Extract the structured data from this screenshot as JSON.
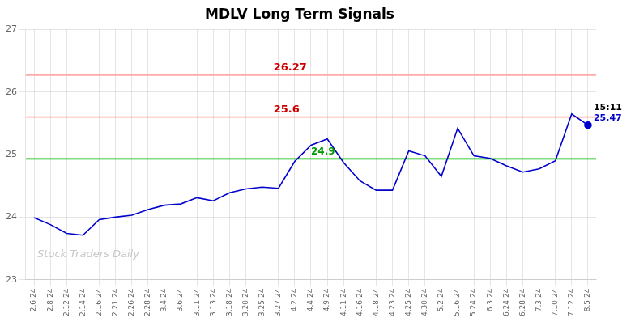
{
  "chart_data": {
    "type": "line",
    "title": "MDLV Long Term Signals",
    "watermark": "Stock Traders Daily",
    "categories": [
      "2.6.24",
      "2.8.24",
      "2.12.24",
      "2.14.24",
      "2.16.24",
      "2.21.24",
      "2.26.24",
      "2.28.24",
      "3.4.24",
      "3.6.24",
      "3.11.24",
      "3.13.24",
      "3.18.24",
      "3.20.24",
      "3.25.24",
      "3.27.24",
      "4.2.24",
      "4.4.24",
      "4.9.24",
      "4.11.24",
      "4.16.24",
      "4.18.24",
      "4.23.24",
      "4.25.24",
      "4.30.24",
      "5.2.24",
      "5.16.24",
      "5.24.24",
      "6.3.24",
      "6.24.24",
      "6.28.24",
      "7.3.24",
      "7.10.24",
      "7.12.24",
      "8.5.24"
    ],
    "values": [
      23.99,
      23.88,
      23.74,
      23.71,
      23.96,
      24.0,
      24.03,
      24.12,
      24.19,
      24.21,
      24.31,
      24.26,
      24.39,
      24.45,
      24.48,
      24.46,
      24.89,
      25.15,
      25.25,
      24.87,
      24.58,
      24.43,
      24.43,
      25.06,
      24.98,
      24.65,
      25.42,
      24.98,
      24.94,
      24.82,
      24.72,
      24.77,
      24.9,
      25.65,
      25.47
    ],
    "color": "#0000cc",
    "reference_lines": [
      {
        "value": 26.27,
        "label": "26.27",
        "color": "#ffaaaa",
        "label_color": "#cc0000"
      },
      {
        "value": 25.6,
        "label": "25.6",
        "color": "#ffaaaa",
        "label_color": "#cc0000"
      },
      {
        "value": 24.93,
        "label": "24.9",
        "color": "#00bb00",
        "label_color": "#009900"
      }
    ],
    "last_point": {
      "label": "15:11",
      "value_label": "25.47",
      "color": "#0000cc"
    },
    "ylim": [
      23,
      27
    ],
    "yticks": [
      23,
      24,
      25,
      26,
      27
    ],
    "grid": true
  }
}
